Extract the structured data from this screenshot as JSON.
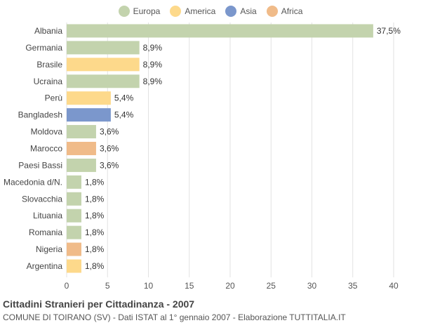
{
  "chart_data": {
    "type": "bar",
    "orientation": "horizontal",
    "categories": [
      "Albania",
      "Germania",
      "Brasile",
      "Ucraina",
      "Perù",
      "Bangladesh",
      "Moldova",
      "Marocco",
      "Paesi Bassi",
      "Macedonia d/N.",
      "Slovacchia",
      "Lituania",
      "Romania",
      "Nigeria",
      "Argentina"
    ],
    "values": [
      37.5,
      8.9,
      8.9,
      8.9,
      5.4,
      5.4,
      3.6,
      3.6,
      3.6,
      1.8,
      1.8,
      1.8,
      1.8,
      1.8,
      1.8
    ],
    "value_labels": [
      "37,5%",
      "8,9%",
      "8,9%",
      "8,9%",
      "5,4%",
      "5,4%",
      "3,6%",
      "3,6%",
      "3,6%",
      "1,8%",
      "1,8%",
      "1,8%",
      "1,8%",
      "1,8%",
      "1,8%"
    ],
    "continent": [
      "Europa",
      "Europa",
      "America",
      "Europa",
      "America",
      "Asia",
      "Europa",
      "Africa",
      "Europa",
      "Europa",
      "Europa",
      "Europa",
      "Europa",
      "Africa",
      "America"
    ],
    "legend": [
      {
        "name": "Europa",
        "color": "#c3d3ad"
      },
      {
        "name": "America",
        "color": "#fdd98b"
      },
      {
        "name": "Asia",
        "color": "#7b97cc"
      },
      {
        "name": "Africa",
        "color": "#f0bb89"
      }
    ],
    "xlim": [
      0,
      40
    ],
    "xticks": [
      0,
      5,
      10,
      15,
      20,
      25,
      30,
      35,
      40
    ],
    "grid": true,
    "legend_position": "top",
    "title": "Cittadini Stranieri per Cittadinanza - 2007",
    "subtitle": "COMUNE DI TOIRANO (SV) - Dati ISTAT al 1° gennaio 2007 - Elaborazione TUTTITALIA.IT"
  }
}
